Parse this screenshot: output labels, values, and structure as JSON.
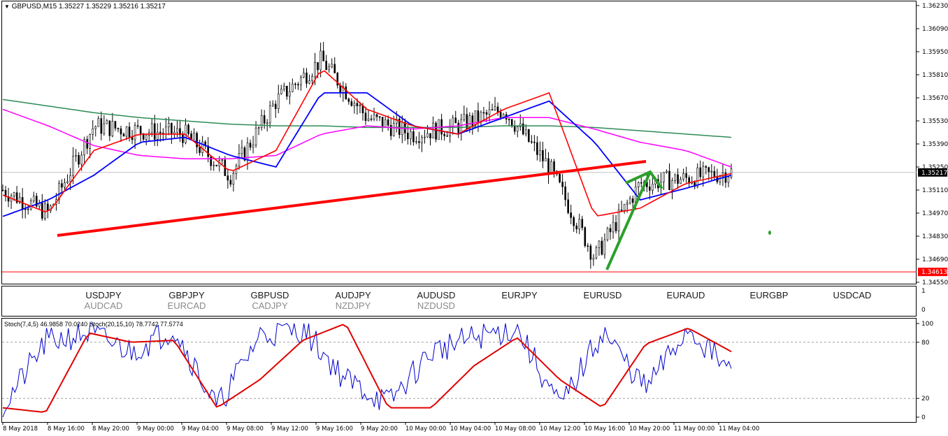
{
  "chart_header": {
    "arrow": "▼",
    "text": "GBPUSD,M15  1.35227 1.35229 1.35216 1.35217"
  },
  "price_axis": {
    "ticks": [
      "1.36230",
      "1.36090",
      "1.35950",
      "1.35810",
      "1.35670",
      "1.35530",
      "1.35390",
      "1.35250",
      "1.35110",
      "1.34970",
      "1.34830",
      "1.34690",
      "1.34550"
    ],
    "current_price": "1.35217",
    "current_price_color": "#000000",
    "alert_price": "1.34613",
    "alert_color": "#ff0000"
  },
  "symbols_panel": {
    "columns": [
      {
        "main": "USDJPY",
        "sub": "AUDCAD"
      },
      {
        "main": "GBPJPY",
        "sub": "EURCAD"
      },
      {
        "main": "GBPUSD",
        "sub": "CADJPY"
      },
      {
        "main": "AUDJPY",
        "sub": "NZDJPY"
      },
      {
        "main": "AUDUSD",
        "sub": "NZDUSD"
      },
      {
        "main": "EURJPY",
        "sub": ""
      },
      {
        "main": "EURUSD",
        "sub": ""
      },
      {
        "main": "EURAUD",
        "sub": ""
      },
      {
        "main": "EURGBP",
        "sub": ""
      },
      {
        "main": "USDCAD",
        "sub": ""
      }
    ],
    "axis_top": "1",
    "axis_bottom": "0"
  },
  "stoch_panel": {
    "header": "Stoch(7,4,5) 46.9858 70.0240  Stoch(20,15,10) 78.7742 77.5774",
    "levels": [
      "100",
      "80",
      "20",
      "0"
    ]
  },
  "time_axis": {
    "labels": [
      "8 May 2018",
      "8 May 16:00",
      "8 May 20:00",
      "9 May 00:00",
      "9 May 04:00",
      "9 May 08:00",
      "9 May 12:00",
      "9 May 16:00",
      "9 May 20:00",
      "10 May 00:00",
      "10 May 04:00",
      "10 May 08:00",
      "10 May 12:00",
      "10 May 16:00",
      "10 May 20:00",
      "11 May 00:00",
      "11 May 04:00"
    ]
  },
  "colors": {
    "candles": "#000000",
    "ma_fast": "#ff0000",
    "ma_mid": "#0000ff",
    "ma_slow": "#ff00ff",
    "ma_long": "#2e8b57",
    "trendline": "#ff0000",
    "arrow": "#2ca02c",
    "stoch_fast": "#0000cd",
    "stoch_slow": "#e00000"
  },
  "chart_data": {
    "type": "line",
    "title": "GBPUSD,M15",
    "ylim": [
      1.3455,
      1.3623
    ],
    "x": [
      "8 May 2018",
      "8 May 16:00",
      "8 May 20:00",
      "9 May 00:00",
      "9 May 04:00",
      "9 May 08:00",
      "9 May 12:00",
      "9 May 16:00",
      "9 May 20:00",
      "10 May 00:00",
      "10 May 04:00",
      "10 May 08:00",
      "10 May 12:00",
      "10 May 16:00",
      "10 May 20:00",
      "11 May 00:00",
      "11 May 04:00"
    ],
    "series": [
      {
        "values": [
          1.3511,
          1.3497,
          1.355,
          1.3547,
          1.3545,
          1.352,
          1.3565,
          1.359,
          1.3555,
          1.3545,
          1.355,
          1.356,
          1.3525,
          1.347,
          1.3515,
          1.3518,
          1.3522
        ]
      },
      {
        "values": [
          1.3508,
          1.3497,
          1.3535,
          1.3545,
          1.3545,
          1.3522,
          1.3535,
          1.3585,
          1.356,
          1.355,
          1.3545,
          1.356,
          1.357,
          1.3495,
          1.35,
          1.3515,
          1.3521
        ]
      },
      {
        "values": [
          1.3495,
          1.3505,
          1.352,
          1.354,
          1.3543,
          1.3532,
          1.3525,
          1.357,
          1.357,
          1.355,
          1.3545,
          1.3555,
          1.3565,
          1.354,
          1.3505,
          1.3512,
          1.352
        ]
      },
      {
        "values": [
          1.356,
          1.355,
          1.3538,
          1.3532,
          1.353,
          1.353,
          1.3532,
          1.3545,
          1.355,
          1.3548,
          1.355,
          1.3555,
          1.3555,
          1.3548,
          1.354,
          1.3535,
          1.3525
        ]
      },
      {
        "values": [
          1.3566,
          1.3562,
          1.3558,
          1.3555,
          1.3553,
          1.3551,
          1.355,
          1.355,
          1.3549,
          1.3549,
          1.3549,
          1.355,
          1.355,
          1.3549,
          1.3547,
          1.3545,
          1.3543
        ]
      }
    ],
    "stoch": {
      "ylim": [
        0,
        100
      ],
      "levels": [
        80,
        20
      ],
      "series": [
        {
          "values": [
            10,
            80,
            90,
            70,
            95,
            10,
            88,
            95,
            40,
            15,
            70,
            85,
            95,
            10,
            92,
            30,
            95,
            47
          ]
        },
        {
          "values": [
            10,
            5,
            90,
            80,
            82,
            10,
            40,
            82,
            100,
            10,
            10,
            55,
            85,
            40,
            10,
            78,
            95,
            70
          ]
        }
      ]
    }
  }
}
